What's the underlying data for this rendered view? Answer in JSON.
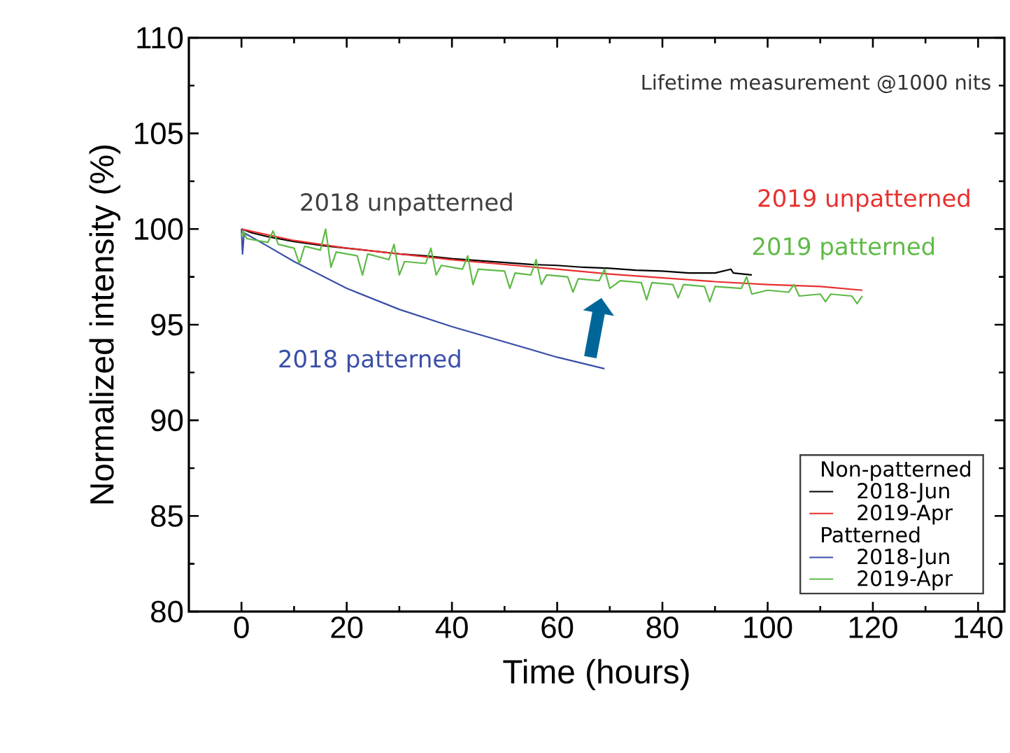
{
  "chart_data": {
    "type": "line",
    "title": "Lifetime measurement @1000 nits",
    "xlabel": "Time (hours)",
    "ylabel": "Normalized intensity (%)",
    "xlim": [
      -10,
      145
    ],
    "ylim": [
      80,
      110
    ],
    "xticks": [
      0,
      20,
      40,
      60,
      80,
      100,
      120,
      140
    ],
    "yticks": [
      80,
      85,
      90,
      95,
      100,
      105,
      110
    ],
    "legend": "bottom right",
    "grid": false,
    "marker": "none",
    "line_style": "solid",
    "series": [
      {
        "name": "2018-Jun",
        "color": "#000000",
        "x": [
          0,
          2,
          5,
          10,
          15,
          20,
          25,
          30,
          35,
          40,
          45,
          50,
          55,
          60,
          65,
          70,
          75,
          80,
          85,
          90,
          93,
          93.5,
          97
        ],
        "values": [
          100,
          99.8,
          99.6,
          99.35,
          99.15,
          99.0,
          98.85,
          98.7,
          98.6,
          98.45,
          98.35,
          98.25,
          98.15,
          98.1,
          98.0,
          97.95,
          97.85,
          97.8,
          97.7,
          97.7,
          97.9,
          97.7,
          97.6
        ]
      },
      {
        "name": "2019-Apr",
        "color": "#e8302f",
        "x": [
          0,
          10,
          20,
          30,
          40,
          50,
          60,
          70,
          80,
          90,
          100,
          110,
          118
        ],
        "values": [
          100,
          99.4,
          99.0,
          98.7,
          98.4,
          98.15,
          97.9,
          97.65,
          97.45,
          97.25,
          97.1,
          97.0,
          96.8
        ]
      },
      {
        "name": "2018-Jun",
        "color": "#3a4fa8",
        "x": [
          0,
          0.2,
          0.5,
          5,
          10,
          20,
          30,
          40,
          50,
          60,
          69
        ],
        "values": [
          100,
          98.7,
          99.8,
          99.1,
          98.3,
          96.9,
          95.8,
          94.9,
          94.1,
          93.3,
          92.7
        ]
      },
      {
        "name": "2019-Apr",
        "color": "#5fba46",
        "x": [
          0,
          0.3,
          1,
          5,
          6,
          7,
          10,
          11,
          12,
          15,
          16,
          17,
          18,
          22,
          23,
          24,
          28,
          29,
          30,
          31,
          35,
          36,
          37,
          38,
          42,
          43,
          44,
          45,
          50,
          51,
          52,
          55,
          56,
          57,
          58,
          62,
          63,
          64,
          68,
          69,
          70,
          72,
          76,
          77,
          78,
          82,
          83,
          84,
          88,
          89,
          90,
          95,
          96,
          97,
          100,
          104,
          105,
          106,
          110,
          111,
          112,
          116,
          117,
          118
        ],
        "values": [
          99.6,
          99.9,
          99.5,
          99.3,
          99.9,
          99.2,
          99.0,
          98.2,
          99.1,
          98.9,
          100.0,
          98.0,
          98.8,
          98.6,
          97.6,
          98.7,
          98.4,
          99.2,
          97.6,
          98.3,
          98.2,
          99.0,
          97.6,
          98.1,
          97.9,
          98.6,
          97.1,
          97.9,
          97.8,
          96.9,
          97.7,
          97.6,
          98.4,
          97.1,
          97.6,
          97.5,
          96.7,
          97.4,
          97.3,
          97.9,
          96.9,
          97.3,
          97.2,
          96.3,
          97.2,
          97.1,
          96.4,
          97.1,
          97.0,
          96.2,
          97.0,
          96.9,
          97.5,
          96.6,
          96.8,
          96.7,
          97.1,
          96.5,
          96.6,
          96.2,
          96.6,
          96.5,
          96.1,
          96.5
        ]
      }
    ],
    "annotations": [
      "Non-patterned",
      "Patterned",
      "2018 unpatterned",
      "2019 unpatterned",
      "2019 patterned",
      "2018 patterned"
    ]
  }
}
